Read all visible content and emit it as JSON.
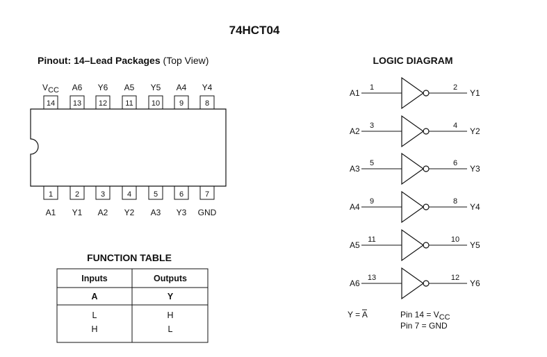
{
  "title": "74HCT04",
  "pinout": {
    "heading_bold": "Pinout: 14–Lead Packages",
    "heading_light": " (Top View)",
    "top_pins": [
      {
        "label": "VCC",
        "number": "14"
      },
      {
        "label": "A6",
        "number": "13"
      },
      {
        "label": "Y6",
        "number": "12"
      },
      {
        "label": "A5",
        "number": "11"
      },
      {
        "label": "Y5",
        "number": "10"
      },
      {
        "label": "A4",
        "number": "9"
      },
      {
        "label": "Y4",
        "number": "8"
      }
    ],
    "bottom_pins": [
      {
        "label": "A1",
        "number": "1"
      },
      {
        "label": "Y1",
        "number": "2"
      },
      {
        "label": "A2",
        "number": "3"
      },
      {
        "label": "Y2",
        "number": "4"
      },
      {
        "label": "A3",
        "number": "5"
      },
      {
        "label": "Y3",
        "number": "6"
      },
      {
        "label": "GND",
        "number": "7"
      }
    ]
  },
  "logic_diagram": {
    "heading": "LOGIC DIAGRAM",
    "gates": [
      {
        "input": "A1",
        "input_pin": "1",
        "output": "Y1",
        "output_pin": "2"
      },
      {
        "input": "A2",
        "input_pin": "3",
        "output": "Y2",
        "output_pin": "4"
      },
      {
        "input": "A3",
        "input_pin": "5",
        "output": "Y3",
        "output_pin": "6"
      },
      {
        "input": "A4",
        "input_pin": "9",
        "output": "Y4",
        "output_pin": "8"
      },
      {
        "input": "A5",
        "input_pin": "11",
        "output": "Y5",
        "output_pin": "10"
      },
      {
        "input": "A6",
        "input_pin": "13",
        "output": "Y6",
        "output_pin": "12"
      }
    ],
    "equation_left": "Y = ",
    "equation_bar": "A",
    "pin14_prefix": "Pin 14 = V",
    "pin14_sub": "CC",
    "pin7": "Pin 7 = GND"
  },
  "function_table": {
    "heading": "FUNCTION TABLE",
    "group_headers": [
      "Inputs",
      "Outputs"
    ],
    "col_headers": [
      "A",
      "Y"
    ],
    "rows": [
      [
        "L",
        "H"
      ],
      [
        "H",
        "L"
      ]
    ]
  }
}
